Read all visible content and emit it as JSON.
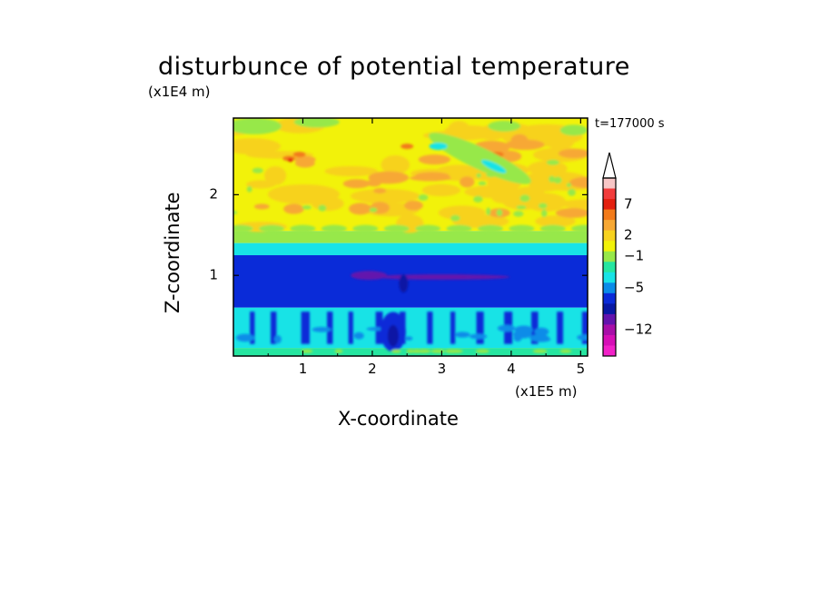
{
  "chart_data": {
    "type": "heatmap",
    "title": "disturbunce of potential temperature",
    "time_label": "t=177000 s",
    "xlabel": "X-coordinate",
    "ylabel": "Z-coordinate",
    "x_unit": "(x1E5 m)",
    "y_unit": "(x1E4 m)",
    "xlim": [
      0,
      5.1
    ],
    "ylim": [
      0,
      2.95
    ],
    "x_ticks": [
      "1",
      "2",
      "3",
      "4",
      "5"
    ],
    "y_ticks": [
      "1",
      "2"
    ],
    "colorbar": {
      "labels": [
        "7",
        "2",
        "-1",
        "-5",
        "-12"
      ],
      "colors": [
        "#f7c6c6",
        "#f23c3c",
        "#e3200f",
        "#f27a1a",
        "#f7a834",
        "#f7d21f",
        "#f2f20a",
        "#97e84a",
        "#26e6a0",
        "#18e3e6",
        "#0a8ce8",
        "#0a2bd8",
        "#0818a4",
        "#6313ad",
        "#a80ea8",
        "#d60fb6",
        "#f221c8"
      ],
      "extend_top": true
    },
    "bands": [
      {
        "z": [
          1.55,
          2.95
        ],
        "value": 2,
        "description": "mixed yellow/orange above 1.55"
      },
      {
        "z": [
          1.4,
          1.55
        ],
        "value": 0
      },
      {
        "z": [
          1.25,
          1.4
        ],
        "value": -1
      },
      {
        "z": [
          0.6,
          1.25
        ],
        "value": -5
      },
      {
        "z": [
          0.1,
          0.6
        ],
        "value": -2
      }
    ]
  }
}
